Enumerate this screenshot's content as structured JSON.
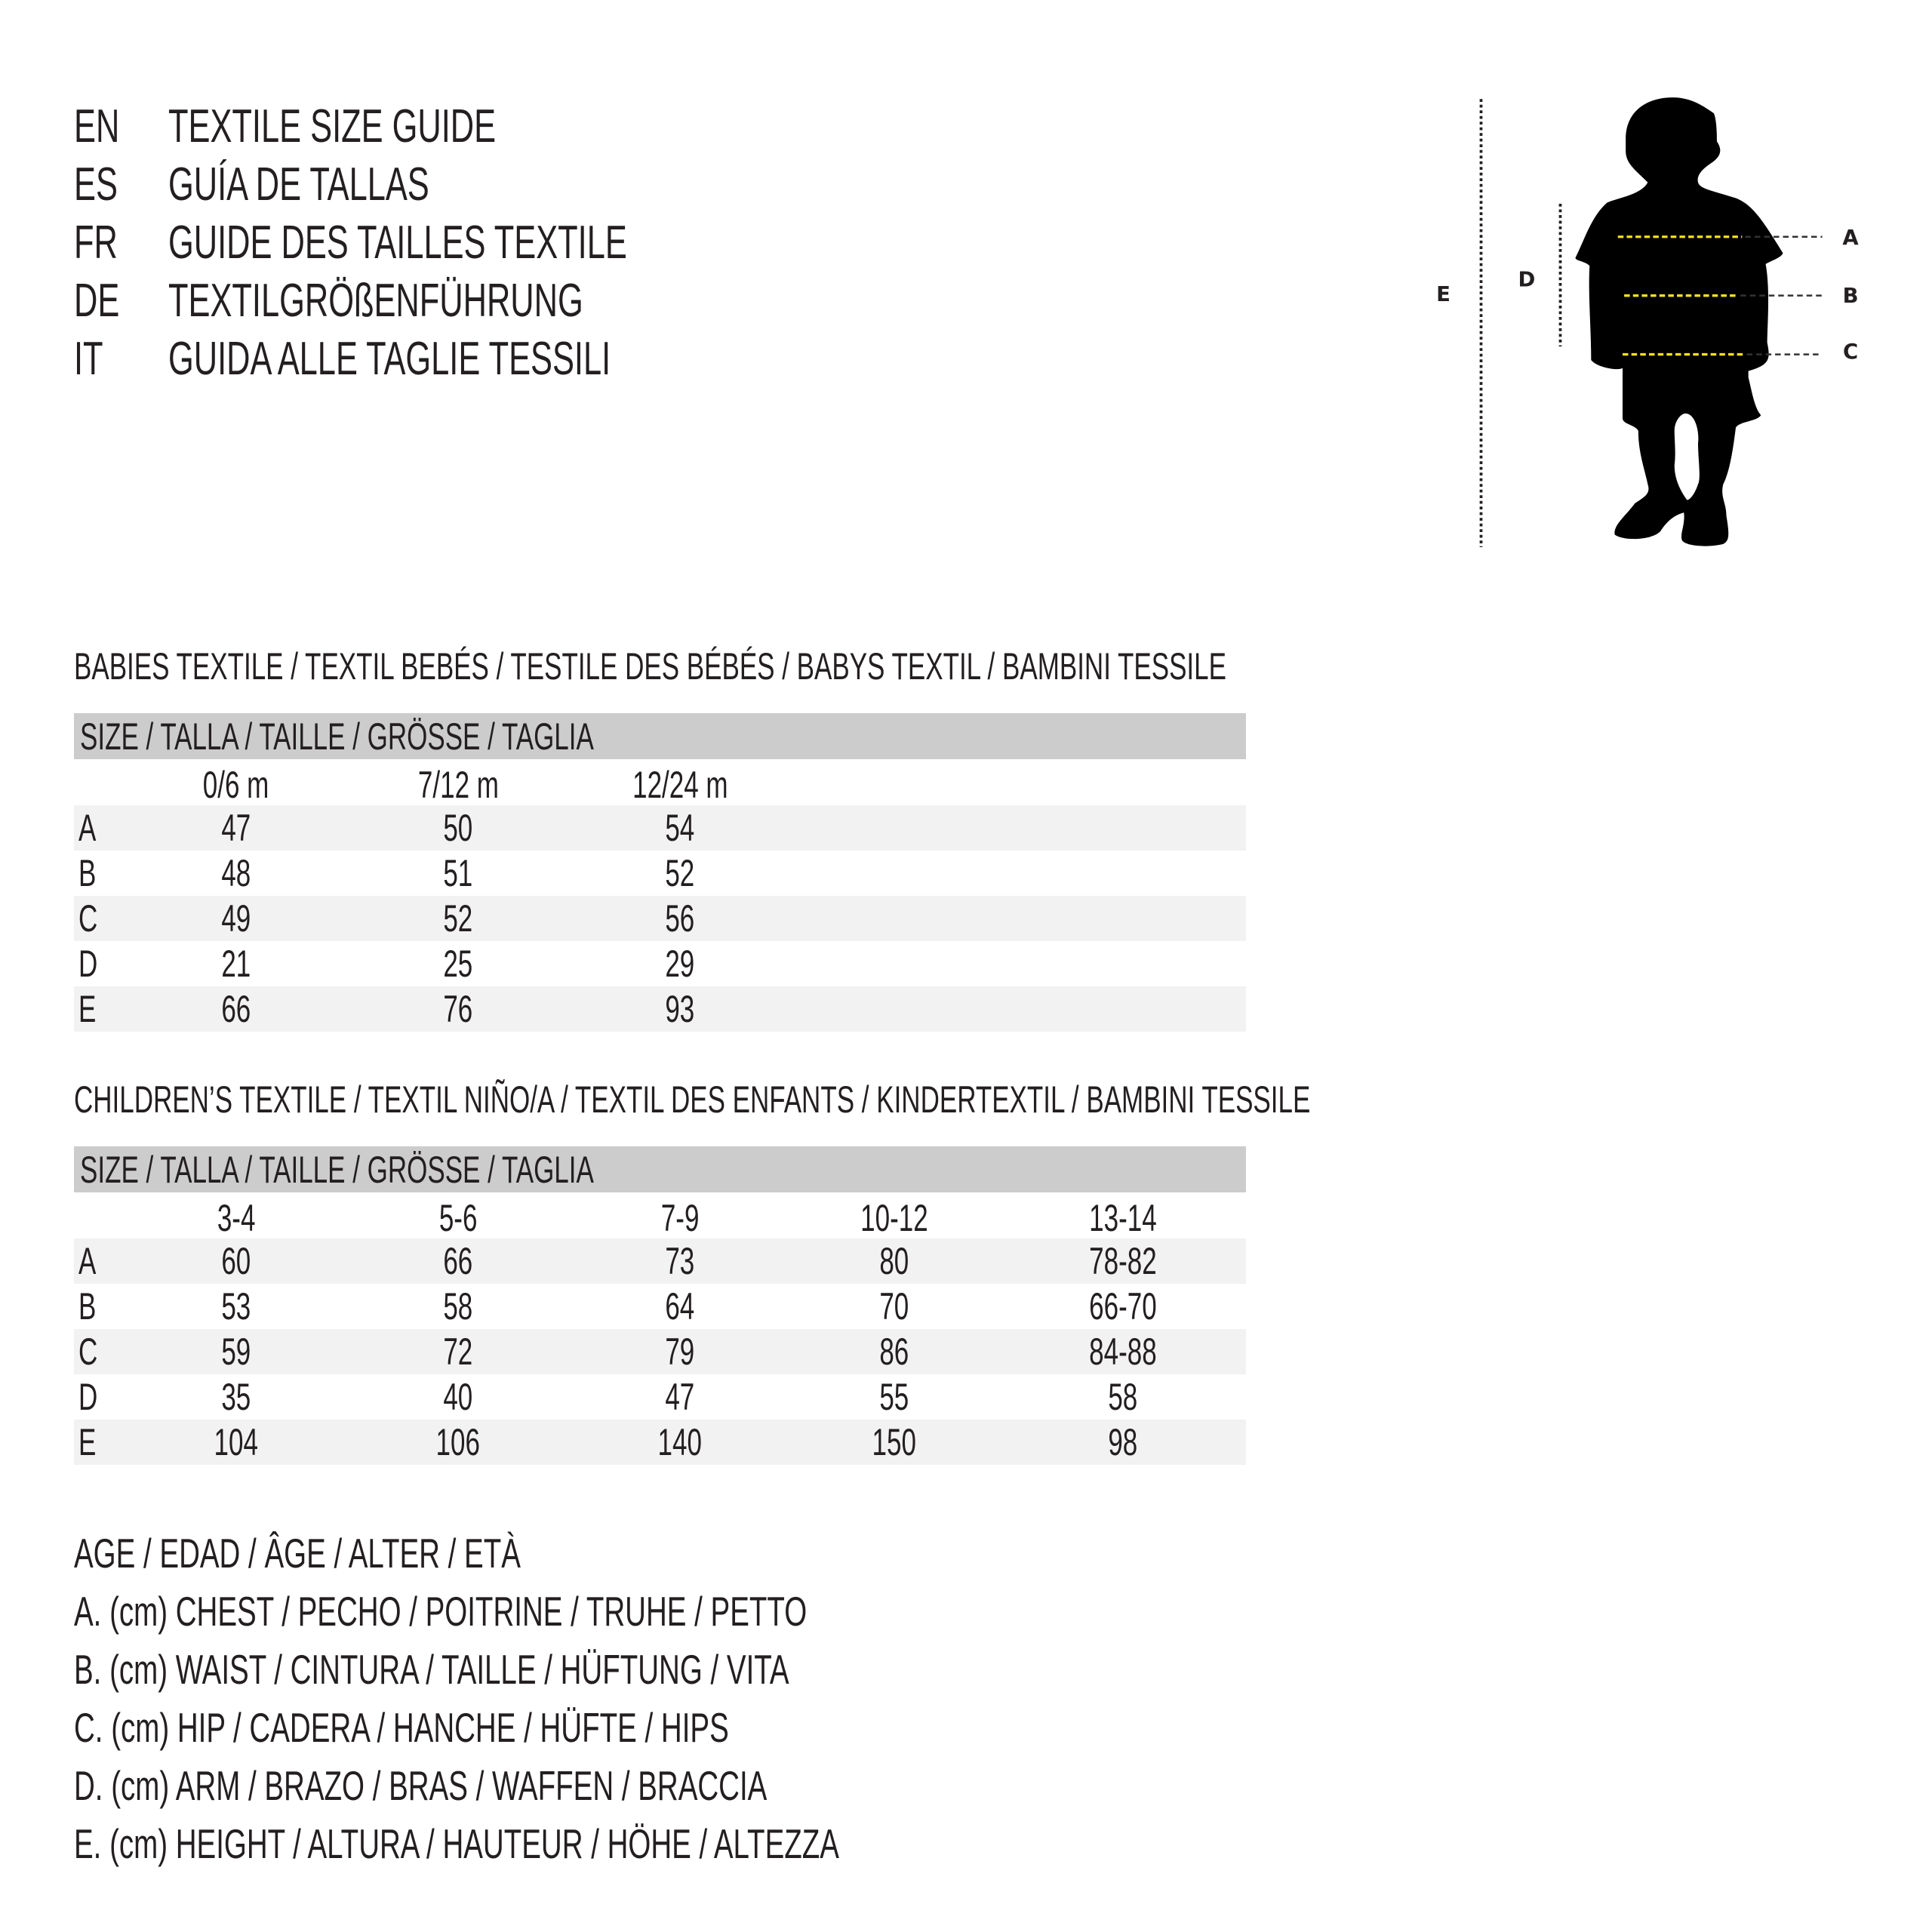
{
  "titles": [
    {
      "code": "EN",
      "text": "TEXTILE SIZE GUIDE"
    },
    {
      "code": "ES",
      "text": "GUÍA DE TALLAS"
    },
    {
      "code": "FR",
      "text": "GUIDE DES TAILLES TEXTILE"
    },
    {
      "code": "DE",
      "text": "TEXTILGRÖßENFÜHRUNG"
    },
    {
      "code": "IT",
      "text": "GUIDA ALLE TAGLIE TESSILI"
    }
  ],
  "diagram": {
    "labels": {
      "a": "A",
      "b": "B",
      "c": "C",
      "d": "D",
      "e": "E"
    },
    "colors": {
      "silhouette": "#000000",
      "measure_line": "#f5e020",
      "guide_line": "#231f20"
    }
  },
  "babies": {
    "heading": "BABIES TEXTILE / TEXTIL BEBÉS / TESTILE DES BÉBÉS / BABYS TEXTIL / BAMBINI TESSILE",
    "size_header": "SIZE / TALLA / TAILLE / GRÖSSE / TAGLIA",
    "columns": [
      "0/6 m",
      "7/12 m",
      "12/24 m"
    ],
    "rows": [
      {
        "label": "A",
        "values": [
          "47",
          "50",
          "54"
        ]
      },
      {
        "label": "B",
        "values": [
          "48",
          "51",
          "52"
        ]
      },
      {
        "label": "C",
        "values": [
          "49",
          "52",
          "56"
        ]
      },
      {
        "label": "D",
        "values": [
          "21",
          "25",
          "29"
        ]
      },
      {
        "label": "E",
        "values": [
          "66",
          "76",
          "93"
        ]
      }
    ]
  },
  "children": {
    "heading": "CHILDREN’S TEXTILE / TEXTIL NIÑO/A / TEXTIL DES ENFANTS / KINDERTEXTIL / BAMBINI TESSILE",
    "size_header": "SIZE / TALLA / TAILLE / GRÖSSE / TAGLIA",
    "columns": [
      "3-4",
      "5-6",
      "7-9",
      "10-12",
      "13-14"
    ],
    "rows": [
      {
        "label": "A",
        "values": [
          "60",
          "66",
          "73",
          "80",
          "78-82"
        ]
      },
      {
        "label": "B",
        "values": [
          "53",
          "58",
          "64",
          "70",
          "66-70"
        ]
      },
      {
        "label": "C",
        "values": [
          "59",
          "72",
          "79",
          "86",
          "84-88"
        ]
      },
      {
        "label": "D",
        "values": [
          "35",
          "40",
          "47",
          "55",
          "58"
        ]
      },
      {
        "label": "E",
        "values": [
          "104",
          "106",
          "140",
          "150",
          "98"
        ]
      }
    ]
  },
  "legend": [
    "AGE / EDAD / ÂGE / ALTER / ETÀ",
    "A. (cm) CHEST / PECHO / POITRINE / TRUHE / PETTO",
    "B. (cm) WAIST / CINTURA / TAILLE / HÜFTUNG / VITA",
    "C. (cm) HIP / CADERA / HANCHE / HÜFTE / HIPS",
    "D. (cm) ARM / BRAZO / BRAS / WAFFEN / BRACCIA",
    "E. (cm) HEIGHT / ALTURA / HAUTEUR / HÖHE / ALTEZZA"
  ]
}
